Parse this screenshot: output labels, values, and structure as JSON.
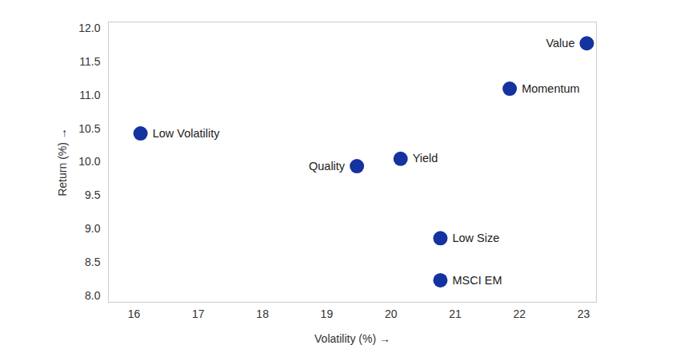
{
  "chart_data": {
    "type": "scatter",
    "x_label": "Volatility (%)",
    "y_label": "Return (%)",
    "labels": [
      "Value",
      "Momentum",
      "Low Volatility",
      "Quality",
      "Yield",
      "Low Size",
      "MSCI EM"
    ],
    "x": [
      23.05,
      21.85,
      16.1,
      19.47,
      20.15,
      20.77,
      20.77
    ],
    "y": [
      11.78,
      11.1,
      10.43,
      9.94,
      10.05,
      8.86,
      8.23
    ],
    "color": "#1432a0",
    "marker": "circle",
    "xlim": [
      15.6,
      23.2
    ],
    "ylim": [
      7.9,
      12.1
    ],
    "xticks": [
      16,
      17,
      18,
      19,
      20,
      21,
      22,
      23
    ],
    "yticks": [
      {
        "value": 8,
        "label": "8.0"
      },
      {
        "value": 8.5,
        "label": "8.5"
      },
      {
        "value": 9,
        "label": "9.0"
      },
      {
        "value": 9.5,
        "label": "9.5"
      },
      {
        "value": 10,
        "label": "10.0"
      },
      {
        "value": 10.5,
        "label": "10.5"
      },
      {
        "value": 11,
        "label": "11.0"
      },
      {
        "value": 11.5,
        "label": "11.5"
      },
      {
        "value": 12,
        "label": "12.0"
      }
    ],
    "grid": false
  }
}
